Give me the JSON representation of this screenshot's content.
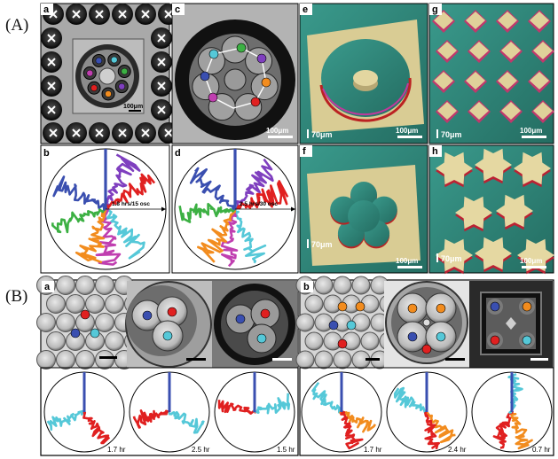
{
  "figure": {
    "section_a_label": "(A)",
    "section_b_label": "(B)",
    "colors": {
      "blue": "#3a4fb0",
      "green": "#3cb043",
      "purple": "#7f3fbf",
      "orange": "#f28c1e",
      "red": "#e02020",
      "magenta": "#c03fb0",
      "cyan": "#55c8d8",
      "rim_gold": "#e7d9a0",
      "surface_teal": "#2f8a7e"
    },
    "A": {
      "panels": {
        "a": {
          "letter": "a",
          "scale": "100μm"
        },
        "b": {
          "letter": "b",
          "time": "1.8 hrs/15 osc"
        },
        "c": {
          "letter": "c",
          "scale": "100μm"
        },
        "d": {
          "letter": "d",
          "time": "2.5 hrs/30 osc"
        },
        "e": {
          "letter": "e",
          "height": "70μm",
          "scale": "100μm"
        },
        "f": {
          "letter": "f",
          "height": "70μm",
          "scale": "100μm"
        },
        "g": {
          "letter": "g",
          "height": "70μm",
          "scale": "100μm"
        },
        "h": {
          "letter": "h",
          "height": "70μm",
          "scale": "100μm"
        }
      }
    },
    "B": {
      "groups": [
        {
          "letter": "a",
          "times": [
            "1.7 hr",
            "2.5 hr",
            "1.5 hr"
          ]
        },
        {
          "letter": "b",
          "times": [
            "1.7 hr",
            "2.4 hr",
            "0.7 hr"
          ]
        }
      ]
    }
  }
}
